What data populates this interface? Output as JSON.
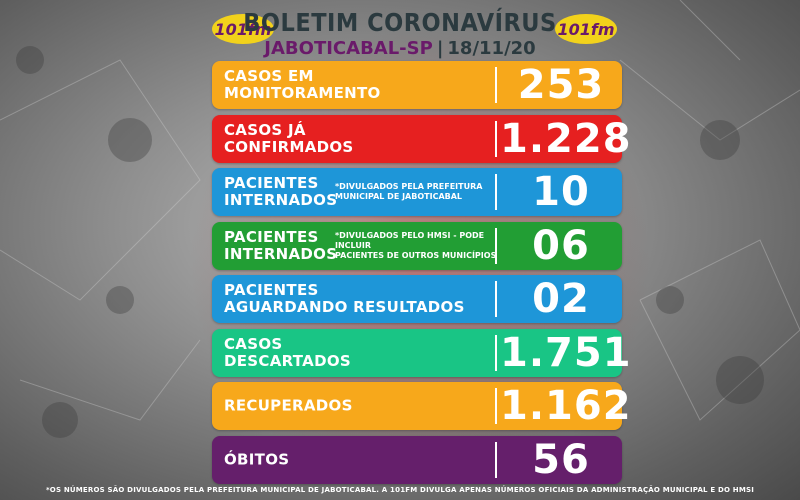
{
  "header": {
    "title": "BOLETIM CORONAVÍRUS",
    "city": "JABOTICABAL-SP",
    "separator": "|",
    "date": "18/11/20",
    "logo_text": "101fm"
  },
  "rows": [
    {
      "label": "CASOS EM\nMONITORAMENTO",
      "note": "",
      "value": "253",
      "color": "#f7a81b"
    },
    {
      "label": "CASOS JÁ\nCONFIRMADOS",
      "note": "",
      "value": "1.228",
      "color": "#e62020"
    },
    {
      "label": "PACIENTES\nINTERNADOS",
      "note": "*DIVULGADOS PELA PREFEITURA\nMUNICIPAL DE JABOTICABAL",
      "value": "10",
      "color": "#1e96d8"
    },
    {
      "label": "PACIENTES\nINTERNADOS",
      "note": "*DIVULGADOS PELO HMSI - PODE INCLUIR\nPACIENTES DE OUTROS MUNICÍPIOS",
      "value": "06",
      "color": "#229e34"
    },
    {
      "label": "PACIENTES\nAGUARDANDO RESULTADOS",
      "note": "",
      "value": "02",
      "color": "#1e96d8"
    },
    {
      "label": "CASOS\nDESCARTADOS",
      "note": "",
      "value": "1.751",
      "color": "#19c585"
    },
    {
      "label": "RECUPERADOS",
      "note": "",
      "value": "1.162",
      "color": "#f7a81b"
    },
    {
      "label": "ÓBITOS",
      "note": "",
      "value": "56",
      "color": "#651f6b"
    }
  ],
  "footer": "*OS NÚMEROS SÃO DIVULGADOS PELA PREFEITURA MUNICIPAL DE JABOTICABAL. A 101FM DIVULGA APENAS NÚMEROS OFICIAIS DA ADMINISTRAÇÃO MUNICIPAL E DO HMSI",
  "colors": {
    "title": "#2b3a3f",
    "subtitle": "#6a1a6a",
    "logo_yellow": "#f2d21b",
    "logo_purple": "#6a1a6a"
  }
}
